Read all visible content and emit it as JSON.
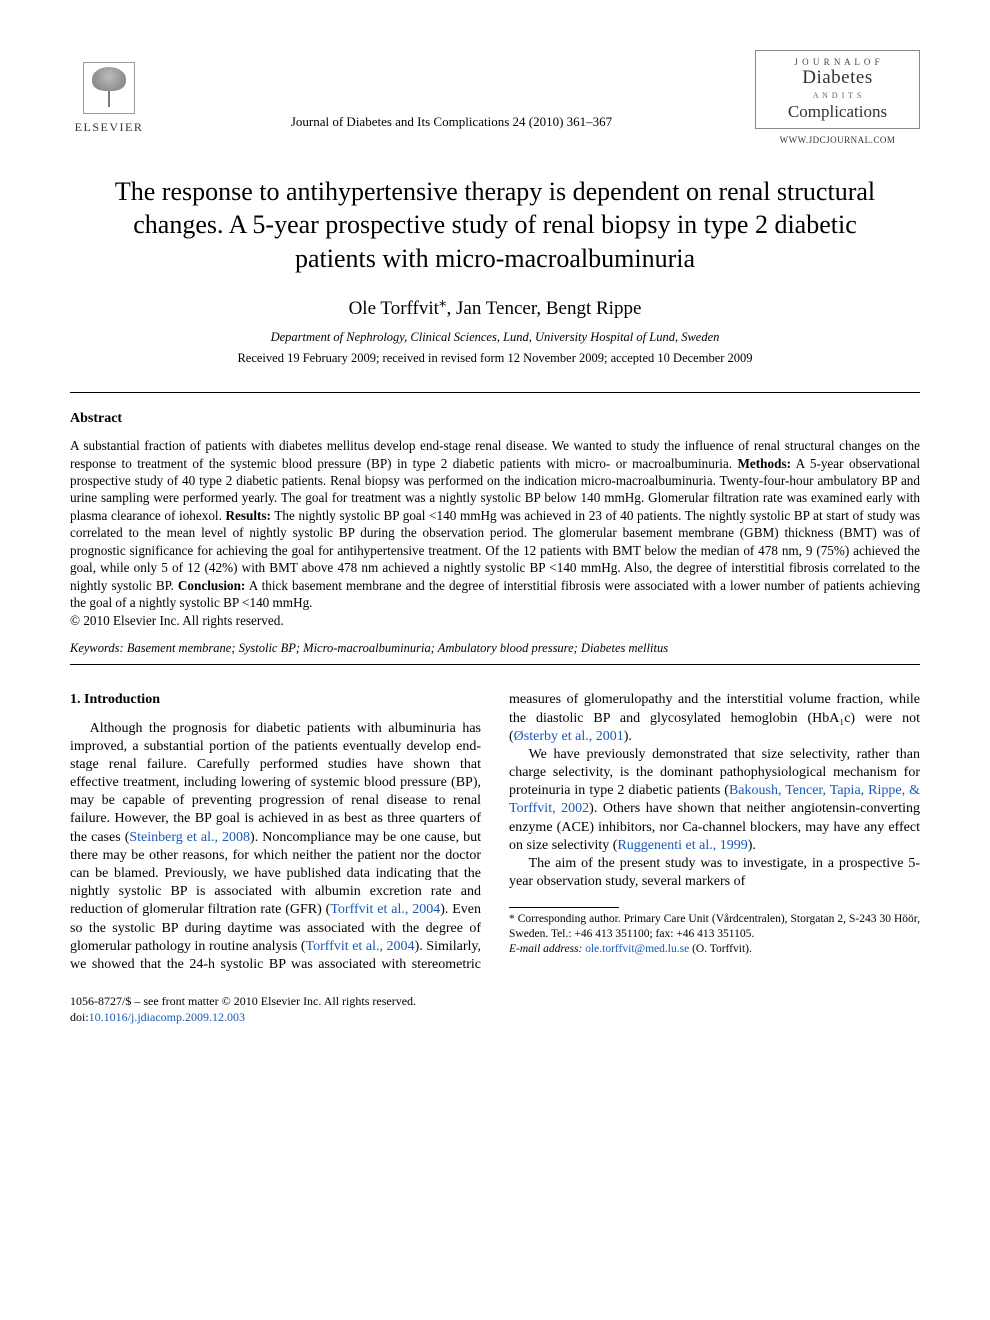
{
  "publisher": "ELSEVIER",
  "citation": "Journal of Diabetes and Its Complications 24 (2010) 361–367",
  "journal_badge": {
    "small_top": "J O U R N A L  O F",
    "diabetes": "Diabetes",
    "and": "A N D  I T S",
    "complications": "Complications",
    "url": "WWW.JDCJOURNAL.COM"
  },
  "title": "The response to antihypertensive therapy is dependent on renal structural changes. A 5-year prospective study of renal biopsy in type 2 diabetic patients with micro-macroalbuminuria",
  "authors": "Ole Torffvit*, Jan Tencer, Bengt Rippe",
  "affiliation": "Department of Nephrology, Clinical Sciences, Lund, University Hospital of Lund, Sweden",
  "dates": "Received 19 February 2009; received in revised form 12 November 2009; accepted 10 December 2009",
  "abstract": {
    "heading": "Abstract",
    "intro": "A substantial fraction of patients with diabetes mellitus develop end-stage renal disease. We wanted to study the influence of renal structural changes on the response to treatment of the systemic blood pressure (BP) in type 2 diabetic patients with micro- or macroalbuminuria. ",
    "methods_head": "Methods:",
    "methods": " A 5-year observational prospective study of 40 type 2 diabetic patients. Renal biopsy was performed on the indication micro-macroalbuminuria. Twenty-four-hour ambulatory BP and urine sampling were performed yearly. The goal for treatment was a nightly systolic BP below 140 mmHg. Glomerular filtration rate was examined early with plasma clearance of iohexol. ",
    "results_head": "Results:",
    "results": " The nightly systolic BP goal <140 mmHg was achieved in 23 of 40 patients. The nightly systolic BP at start of study was correlated to the mean level of nightly systolic BP during the observation period. The glomerular basement membrane (GBM) thickness (BMT) was of prognostic significance for achieving the goal for antihypertensive treatment. Of the 12 patients with BMT below the median of 478 nm, 9 (75%) achieved the goal, while only 5 of 12 (42%) with BMT above 478 nm achieved a nightly systolic BP <140 mmHg. Also, the degree of interstitial fibrosis correlated to the nightly systolic BP. ",
    "conclusion_head": "Conclusion:",
    "conclusion": " A thick basement membrane and the degree of interstitial fibrosis were associated with a lower number of patients achieving the goal of a nightly systolic BP <140 mmHg.",
    "copyright": "© 2010 Elsevier Inc. All rights reserved."
  },
  "keywords": {
    "label": "Keywords:",
    "list": " Basement membrane; Systolic BP; Micro-macroalbuminuria; Ambulatory blood pressure; Diabetes mellitus"
  },
  "intro_heading": "1. Introduction",
  "body": {
    "p1a": "Although the prognosis for diabetic patients with albuminuria has improved, a substantial portion of the patients eventually develop end-stage renal failure. Carefully performed studies have shown that effective treatment, including lowering of systemic blood pressure (BP), may be capable of preventing progression of renal disease to renal failure. However, the BP goal is achieved in as best as three quarters of the cases (",
    "p1_ref1": "Steinberg et al., 2008",
    "p1b": "). Noncompliance may be one cause, but there may be other reasons, for which neither the patient nor the doctor can be blamed. Previously, we have published data indicating that the nightly systolic ",
    "p1c": "BP is associated with albumin excretion rate and reduction of glomerular filtration rate (GFR) (",
    "p1_ref2": "Torffvit et al., 2004",
    "p1d": "). Even so the systolic BP during daytime was associated with the degree of glomerular pathology in routine analysis (",
    "p1_ref3": "Torffvit et al., 2004",
    "p1e": "). Similarly, we showed that the 24-h systolic BP was associated with stereometric measures of glomerulopathy and the interstitial volume fraction, while the diastolic BP and glycosylated hemoglobin (HbA₁c) were not (",
    "p1_ref4": "Østerby et al., 2001",
    "p1f": ").",
    "p2a": "We have previously demonstrated that size selectivity, rather than charge selectivity, is the dominant pathophysiological mechanism for proteinuria in type 2 diabetic patients (",
    "p2_ref1": "Bakoush, Tencer, Tapia, Rippe, & Torffvit, 2002",
    "p2b": "). Others have shown that neither angiotensin-converting enzyme (ACE) inhibitors, nor Ca-channel blockers, may have any effect on size selectivity (",
    "p2_ref2": "Ruggenenti et al., 1999",
    "p2c": ").",
    "p3": "The aim of the present study was to investigate, in a prospective 5-year observation study, several markers of"
  },
  "footnote": {
    "text": "* Corresponding author. Primary Care Unit (Vårdcentralen), Storgatan 2, S-243 30 Höör, Sweden. Tel.: +46 413 351100; fax: +46 413 351105.",
    "email_label": "E-mail address:",
    "email": "ole.torffvit@med.lu.se",
    "email_tail": " (O. Torffvit)."
  },
  "footer": {
    "line1": "1056-8727/$ – see front matter © 2010 Elsevier Inc. All rights reserved.",
    "doi_label": "doi:",
    "doi": "10.1016/j.jdiacomp.2009.12.003"
  },
  "colors": {
    "link": "#1858b8",
    "text": "#000000",
    "background": "#ffffff"
  }
}
